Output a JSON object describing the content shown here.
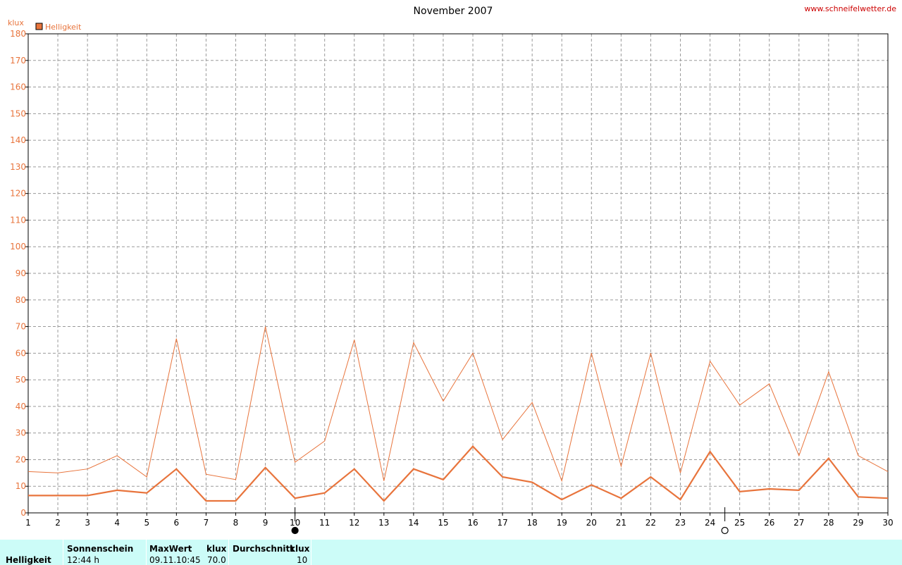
{
  "chart_data": {
    "type": "line",
    "title": "November 2007",
    "source": "www.schneifelwetter.de",
    "ylabel": "klux",
    "ylim": [
      0,
      180
    ],
    "yticks": [
      0,
      10,
      20,
      30,
      40,
      50,
      60,
      70,
      80,
      90,
      100,
      110,
      120,
      130,
      140,
      150,
      160,
      170,
      180
    ],
    "x": [
      1,
      2,
      3,
      4,
      5,
      6,
      7,
      8,
      9,
      10,
      11,
      12,
      13,
      14,
      15,
      16,
      17,
      18,
      19,
      20,
      21,
      22,
      23,
      24,
      25,
      26,
      27,
      28,
      29,
      30
    ],
    "xlim": [
      1,
      30
    ],
    "grid": true,
    "legend": {
      "position": "top-left",
      "entries": [
        "Helligkeit"
      ]
    },
    "color": "#e8743c",
    "series": [
      {
        "values": [
          15.5,
          15,
          16.5,
          21.5,
          13.5,
          65.5,
          14.5,
          12.5,
          70,
          19,
          27,
          65,
          12,
          64,
          42,
          60,
          27.5,
          41.5,
          12,
          60,
          17.5,
          60,
          15,
          57,
          40.5,
          48.5,
          21.5,
          53,
          21.5,
          15.5
        ],
        "style": "max"
      },
      {
        "name": "Helligkeit",
        "values": [
          6.5,
          6.5,
          6.5,
          8.5,
          7.5,
          16.5,
          4.5,
          4.5,
          17,
          5.5,
          7.5,
          16.5,
          4.5,
          16.5,
          12.5,
          25,
          13.5,
          11.5,
          5,
          10.5,
          5.5,
          13.5,
          5,
          23,
          8,
          9,
          8.5,
          20.5,
          6,
          5.5
        ],
        "style": "mean"
      }
    ],
    "moon_markers": [
      {
        "day": 10,
        "phase": "new-moon"
      },
      {
        "day": 24.5,
        "phase": "full-moon"
      }
    ]
  },
  "stats": {
    "row_label": "Helligkeit",
    "sunshine_header": "Sonnenschein",
    "sunshine_value": "12:44 h",
    "max_header": "MaxWert",
    "max_unit": "klux",
    "max_date": "09.11.",
    "max_time": "10:45",
    "max_value": "70.0",
    "avg_header": "Durchschnitt",
    "avg_unit": "klux",
    "avg_value": "10"
  }
}
